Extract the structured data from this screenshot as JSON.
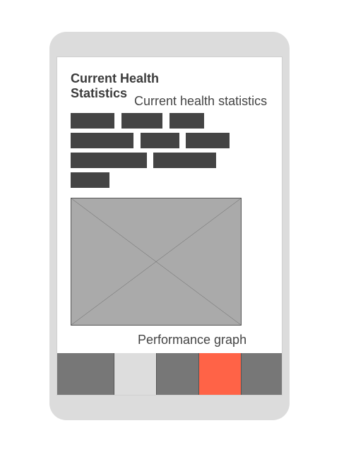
{
  "screen": {
    "title": "Current Health Statistics",
    "subtitle": "Current health statistics"
  },
  "stats_chips": {
    "count": 9,
    "color": "#444444"
  },
  "graph": {
    "caption": "Performance graph",
    "placeholder_color": "#aaaaaa"
  },
  "tab_bar": {
    "tabs": [
      {
        "name": "tab-1",
        "color": "#777777",
        "active": false
      },
      {
        "name": "tab-2",
        "color": "#dddddd",
        "active": false
      },
      {
        "name": "tab-3",
        "color": "#777777",
        "active": false
      },
      {
        "name": "tab-4",
        "color": "#ff6347",
        "active": true
      },
      {
        "name": "tab-5",
        "color": "#777777",
        "active": false
      }
    ]
  }
}
